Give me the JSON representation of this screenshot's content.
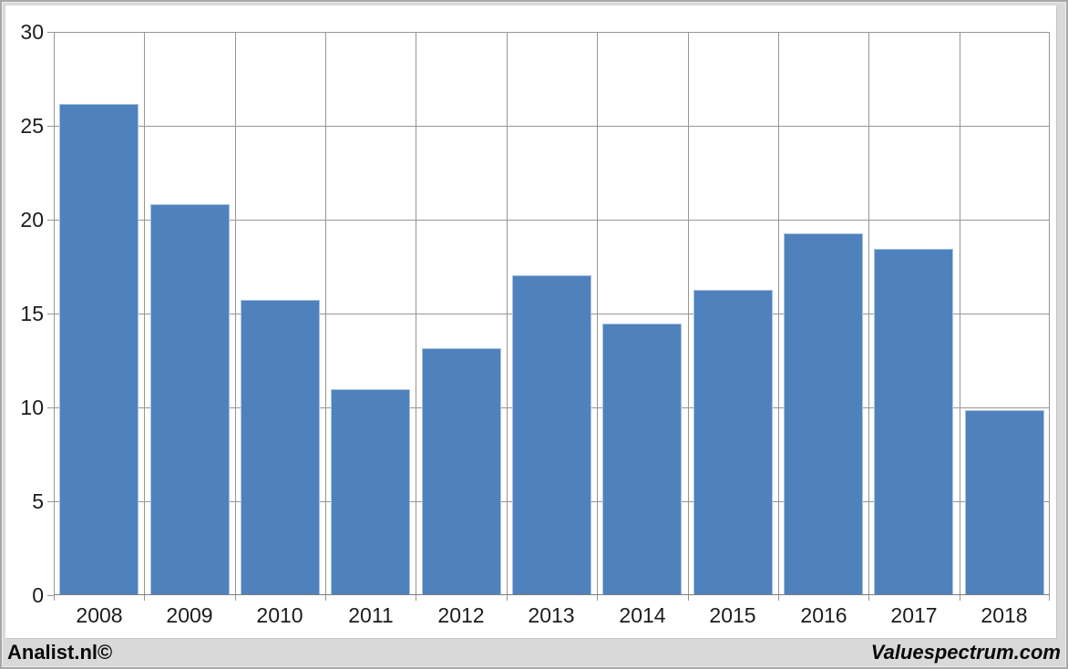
{
  "footer": {
    "left_brand": "Analist.nl©",
    "right_brand": "Valuespectrum.com"
  },
  "colors": {
    "bar_fill": "#4f81bd",
    "bar_border": "#a9c3df",
    "gridline": "#969696",
    "axis_text": "#1c1c1c",
    "panel_bg": "#ffffff",
    "outer_bg": "#d9d9d9"
  },
  "chart_data": {
    "type": "bar",
    "categories": [
      "2008",
      "2009",
      "2010",
      "2011",
      "2012",
      "2013",
      "2014",
      "2015",
      "2016",
      "2017",
      "2018"
    ],
    "values": [
      26.1,
      20.8,
      15.7,
      10.9,
      13.1,
      17.0,
      14.4,
      16.2,
      19.2,
      18.4,
      9.8
    ],
    "title": "",
    "xlabel": "",
    "ylabel": "",
    "ylim": [
      0,
      30
    ],
    "ytick_step": 5,
    "yticks": [
      0,
      5,
      10,
      15,
      20,
      25,
      30
    ],
    "grid": true,
    "legend": "none",
    "series_color": "#4f81bd"
  }
}
